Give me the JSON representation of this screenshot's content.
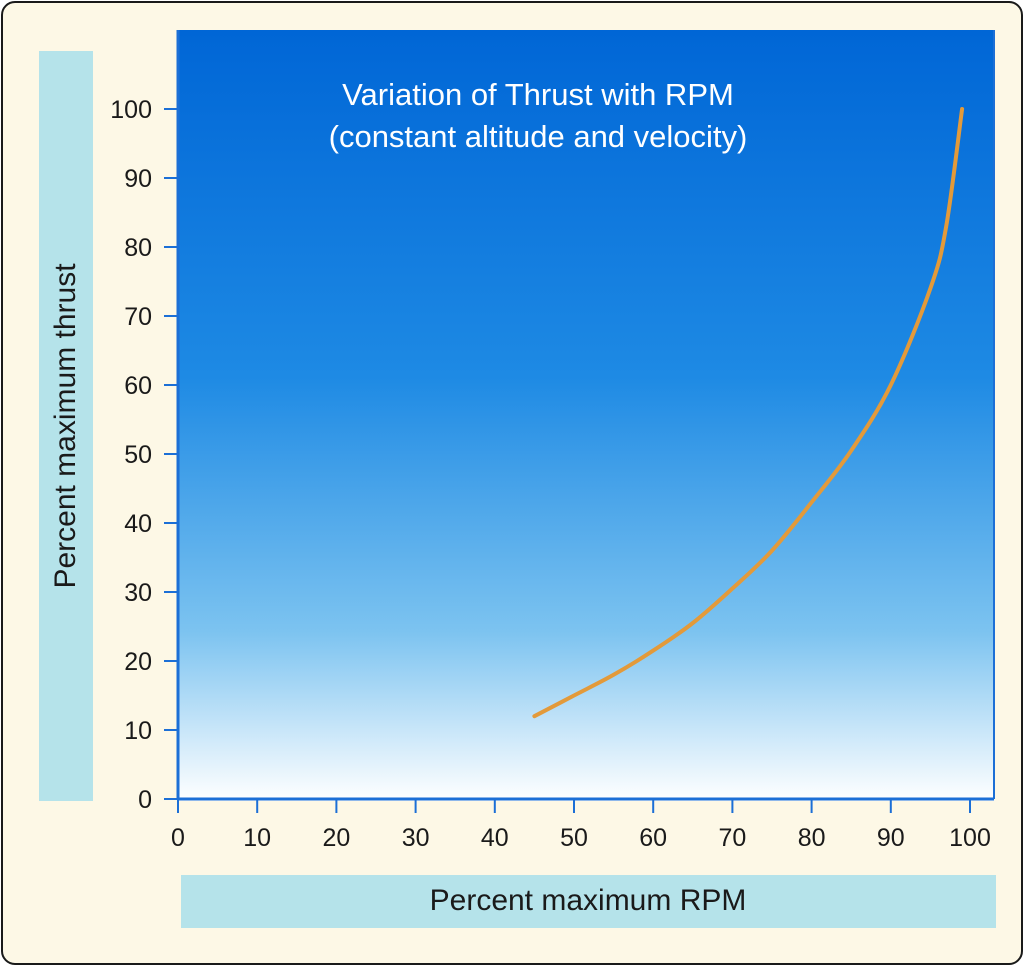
{
  "chart_data": {
    "type": "line",
    "title": "Variation of Thrust with RPM",
    "subtitle": "(constant altitude and velocity)",
    "xlabel": "Percent maximum RPM",
    "ylabel": "Percent maximum thrust",
    "xlim": [
      0,
      100
    ],
    "ylim": [
      0,
      100
    ],
    "xticks": [
      "0",
      "10",
      "20",
      "30",
      "40",
      "50",
      "60",
      "70",
      "80",
      "90",
      "100"
    ],
    "yticks": [
      "0",
      "10",
      "20",
      "30",
      "40",
      "50",
      "60",
      "70",
      "80",
      "90",
      "100"
    ],
    "grid": false,
    "series": [
      {
        "x": [
          45,
          50,
          55,
          60,
          65,
          70,
          75,
          80,
          85,
          90,
          95,
          97,
          99
        ],
        "y": [
          12,
          15,
          18,
          21.5,
          25.5,
          30.5,
          36,
          43,
          50.5,
          60,
          74,
          83,
          100
        ],
        "color": "#e39a3a"
      }
    ],
    "background_gradient": [
      "#0066d6",
      "#1e8ae4",
      "#7cc3f0",
      "#ffffff"
    ]
  }
}
